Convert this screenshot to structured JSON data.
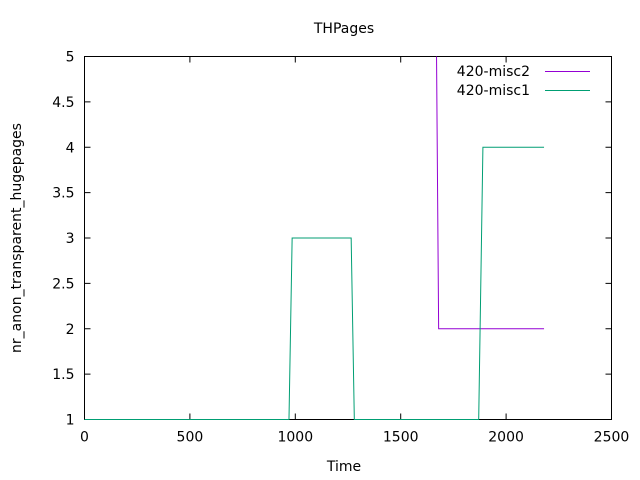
{
  "chart_data": {
    "type": "line",
    "title": "THPages",
    "xlabel": "Time",
    "ylabel": "nr_anon_transparent_hugepages",
    "xlim": [
      0,
      2500
    ],
    "ylim": [
      1,
      5
    ],
    "x_ticks": [
      0,
      500,
      1000,
      1500,
      2000,
      2500
    ],
    "y_ticks": [
      1,
      1.5,
      2,
      2.5,
      3,
      3.5,
      4,
      4.5,
      5
    ],
    "x_tick_labels": [
      "0",
      "500",
      "1000",
      "1500",
      "2000",
      "2500"
    ],
    "y_tick_labels": [
      "1",
      "1.5",
      "2",
      "2.5",
      "3",
      "3.5",
      "4",
      "4.5",
      "5"
    ],
    "grid": false,
    "legend_position": "top-right",
    "series": [
      {
        "name": "420-misc2",
        "color": "#9400d3",
        "points": [
          [
            1670,
            5
          ],
          [
            1680,
            2
          ],
          [
            2180,
            2
          ]
        ]
      },
      {
        "name": "420-misc1",
        "color": "#009e73",
        "points": [
          [
            0,
            1
          ],
          [
            970,
            1
          ],
          [
            985,
            3
          ],
          [
            1265,
            3
          ],
          [
            1280,
            1
          ],
          [
            1870,
            1
          ],
          [
            1890,
            4
          ],
          [
            2180,
            4
          ]
        ]
      }
    ]
  }
}
